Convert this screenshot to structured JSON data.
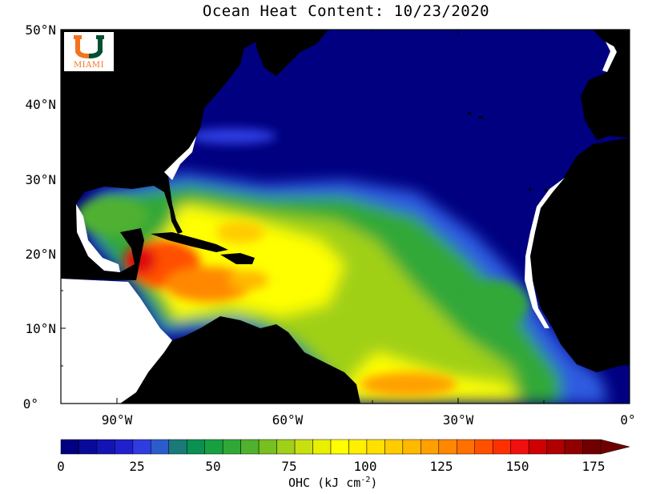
{
  "title": "Ocean Heat Content: 10/23/2020",
  "logo": {
    "text": "MIAMI",
    "icon": "university-of-miami-u-logo",
    "orange": "#f47321",
    "green": "#005030"
  },
  "lat_labels": [
    "50°N",
    "40°N",
    "30°N",
    "20°N",
    "10°N",
    "0°"
  ],
  "lon_labels": [
    "90°W",
    "60°W",
    "30°W",
    "0°"
  ],
  "colorbar": {
    "tick_labels": [
      "0",
      "25",
      "50",
      "75",
      "100",
      "125",
      "150",
      "175"
    ],
    "units_main": "OHC (kJ cm",
    "units_exp": "-2",
    "units_close": ")",
    "colors": [
      "#000080",
      "#0a0a9a",
      "#1414b4",
      "#2020cc",
      "#2e3ce0",
      "#2c5ccc",
      "#1a7a7a",
      "#0a9050",
      "#18a040",
      "#30a838",
      "#50b030",
      "#78c020",
      "#a0d018",
      "#c8e010",
      "#e8f000",
      "#ffff00",
      "#fff000",
      "#ffe000",
      "#ffcc00",
      "#ffb800",
      "#ffa000",
      "#ff8800",
      "#ff7000",
      "#ff5000",
      "#ff3000",
      "#f01010",
      "#d00000",
      "#b00000",
      "#900000",
      "#700000"
    ]
  },
  "colors": {
    "land": "#000000",
    "ocean_low": "#000080",
    "background": "#ffffff"
  }
}
